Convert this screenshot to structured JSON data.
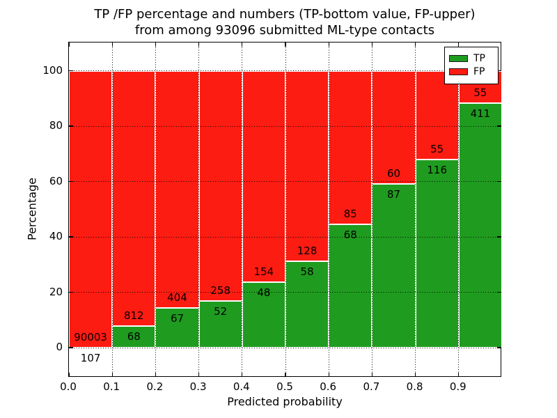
{
  "title": {
    "line1": "TP /FP percentage and numbers (TP-bottom value, FP-upper)",
    "line2": "from among 93096 submitted ML-type contacts"
  },
  "axes": {
    "xlabel": "Predicted probability",
    "ylabel": "Percentage",
    "x_tick_labels": [
      "0.0",
      "0.1",
      "0.2",
      "0.3",
      "0.4",
      "0.5",
      "0.6",
      "0.7",
      "0.8",
      "0.9"
    ],
    "x_tick_values": [
      0.0,
      0.1,
      0.2,
      0.3,
      0.4,
      0.5,
      0.6,
      0.7,
      0.8,
      0.9
    ],
    "y_tick_labels": [
      "0",
      "20",
      "40",
      "60",
      "80",
      "100"
    ],
    "y_tick_values": [
      0,
      20,
      40,
      60,
      80,
      100
    ]
  },
  "legend": {
    "items": [
      {
        "label": "TP",
        "color": "#1f9c1f"
      },
      {
        "label": "FP",
        "color": "#fd1c12"
      }
    ]
  },
  "colors": {
    "tp": "#1f9c1f",
    "fp": "#fd1c12",
    "grid": "#000000",
    "frame": "#000000",
    "background": "#ffffff"
  },
  "chart_data": {
    "type": "bar",
    "variant": "stacked-100-percent",
    "title": "TP /FP percentage and numbers (TP-bottom value, FP-upper) from among 93096 submitted ML-type contacts",
    "xlabel": "Predicted probability",
    "ylabel": "Percentage",
    "xlim": [
      0.0,
      1.0
    ],
    "ylim": [
      -11,
      110
    ],
    "grid": "dotted",
    "legend_position": "upper right",
    "total_contacts": 93096,
    "series_names": [
      "TP",
      "FP"
    ],
    "bins": [
      {
        "x_start": 0.0,
        "x_end": 0.1,
        "tp": 107,
        "fp": 90003,
        "tp_percent": 0.12
      },
      {
        "x_start": 0.1,
        "x_end": 0.2,
        "tp": 68,
        "fp": 812,
        "tp_percent": 7.73
      },
      {
        "x_start": 0.2,
        "x_end": 0.3,
        "tp": 67,
        "fp": 404,
        "tp_percent": 14.23
      },
      {
        "x_start": 0.3,
        "x_end": 0.4,
        "tp": 52,
        "fp": 258,
        "tp_percent": 16.77
      },
      {
        "x_start": 0.4,
        "x_end": 0.5,
        "tp": 48,
        "fp": 154,
        "tp_percent": 23.76
      },
      {
        "x_start": 0.5,
        "x_end": 0.6,
        "tp": 58,
        "fp": 128,
        "tp_percent": 31.18
      },
      {
        "x_start": 0.6,
        "x_end": 0.7,
        "tp": 68,
        "fp": 85,
        "tp_percent": 44.44
      },
      {
        "x_start": 0.7,
        "x_end": 0.8,
        "tp": 87,
        "fp": 60,
        "tp_percent": 59.18
      },
      {
        "x_start": 0.8,
        "x_end": 0.9,
        "tp": 116,
        "fp": 55,
        "tp_percent": 67.84
      },
      {
        "x_start": 0.9,
        "x_end": 1.0,
        "tp": 411,
        "fp": 55,
        "tp_percent": 88.2
      }
    ]
  }
}
